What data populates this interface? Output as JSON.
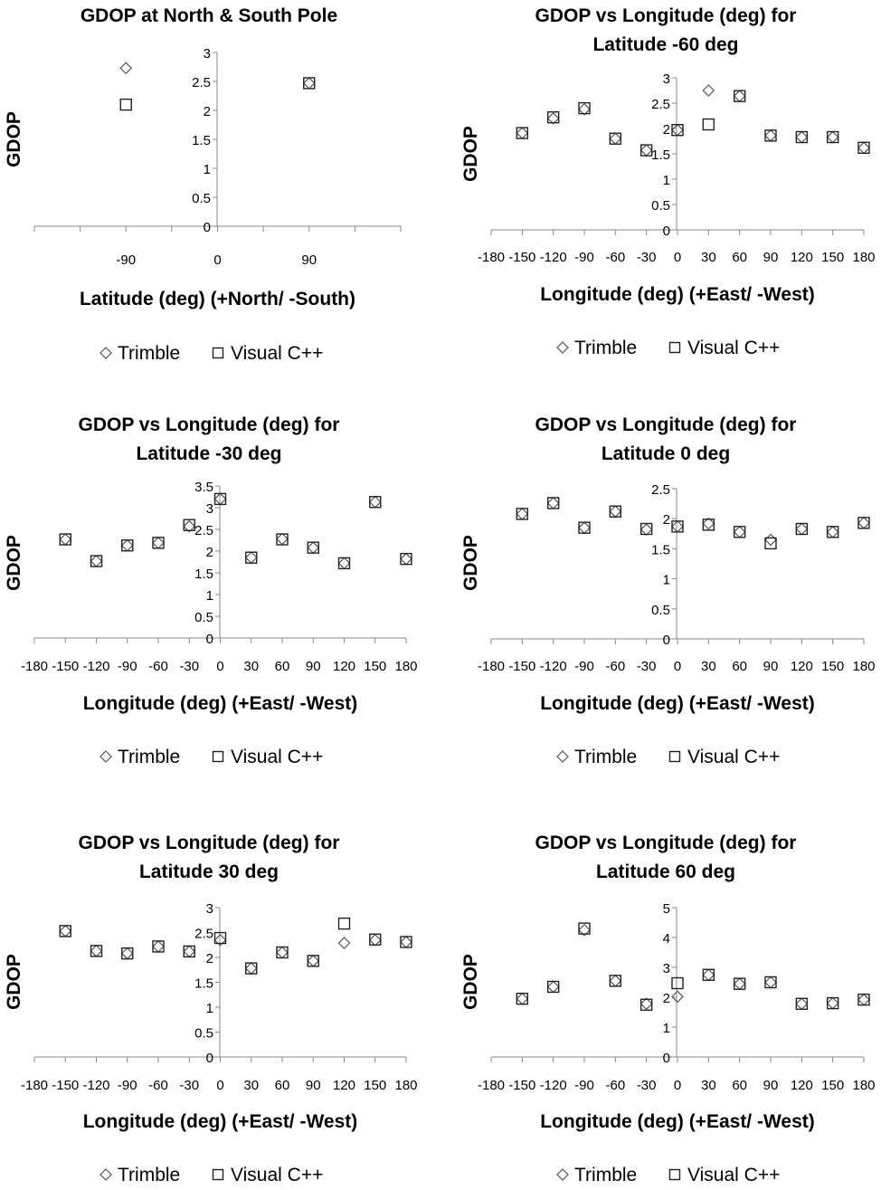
{
  "chart_data": [
    {
      "type": "scatter",
      "title_lines": [
        "GDOP at North & South Pole"
      ],
      "xlabel": "Latitude (deg) (+North/ -South)",
      "ylabel": "GDOP",
      "xlim": [
        -180,
        180
      ],
      "ylim": [
        0,
        3
      ],
      "xticks": [
        -90,
        0,
        90
      ],
      "yticks": [
        0,
        0.5,
        1,
        1.5,
        2,
        2.5,
        3
      ],
      "series": [
        {
          "name": "Trimble",
          "marker": "diamond",
          "x": [
            -90,
            90
          ],
          "y": [
            2.73,
            2.47
          ]
        },
        {
          "name": "Visual C++",
          "marker": "square",
          "x": [
            -90,
            90
          ],
          "y": [
            2.1,
            2.47
          ]
        }
      ]
    },
    {
      "type": "scatter",
      "title_lines": [
        "GDOP vs Longitude (deg) for",
        "Latitude -60 deg"
      ],
      "xlabel": "Longitude (deg) (+East/ -West)",
      "ylabel": "GDOP",
      "xlim": [
        -180,
        180
      ],
      "ylim": [
        0,
        3
      ],
      "xticks": [
        -180,
        -150,
        -120,
        -90,
        -60,
        -30,
        0,
        30,
        60,
        90,
        120,
        150,
        180
      ],
      "yticks": [
        0,
        0.5,
        1,
        1.5,
        2,
        2.5,
        3
      ],
      "series": [
        {
          "name": "Trimble",
          "marker": "diamond",
          "x": [
            -150,
            -120,
            -90,
            -60,
            -30,
            0,
            30,
            60,
            90,
            120,
            150,
            180
          ],
          "y": [
            1.91,
            2.2,
            2.38,
            1.8,
            1.57,
            1.97,
            2.75,
            2.64,
            1.86,
            1.83,
            1.83,
            1.62
          ]
        },
        {
          "name": "Visual C++",
          "marker": "square",
          "x": [
            -150,
            -120,
            -90,
            -60,
            -30,
            0,
            30,
            60,
            90,
            120,
            150,
            180
          ],
          "y": [
            1.91,
            2.22,
            2.4,
            1.8,
            1.57,
            1.97,
            2.08,
            2.64,
            1.86,
            1.83,
            1.83,
            1.62
          ]
        }
      ]
    },
    {
      "type": "scatter",
      "title_lines": [
        "GDOP vs Longitude (deg) for",
        "Latitude -30 deg"
      ],
      "xlabel": "Longitude (deg) (+East/ -West)",
      "ylabel": "GDOP",
      "xlim": [
        -180,
        180
      ],
      "ylim": [
        0,
        3.5
      ],
      "xticks": [
        -180,
        -150,
        -120,
        -90,
        -60,
        -30,
        0,
        30,
        60,
        90,
        120,
        150,
        180
      ],
      "yticks": [
        0,
        0.5,
        1,
        1.5,
        2,
        2.5,
        3,
        3.5
      ],
      "series": [
        {
          "name": "Trimble",
          "marker": "diamond",
          "x": [
            -150,
            -120,
            -90,
            -60,
            -30,
            0,
            30,
            60,
            90,
            120,
            150,
            180
          ],
          "y": [
            2.27,
            1.77,
            2.13,
            2.19,
            2.57,
            3.2,
            1.85,
            2.28,
            2.08,
            1.72,
            3.13,
            1.82
          ]
        },
        {
          "name": "Visual C++",
          "marker": "square",
          "x": [
            -150,
            -120,
            -90,
            -60,
            -30,
            0,
            30,
            60,
            90,
            120,
            150,
            180
          ],
          "y": [
            2.27,
            1.77,
            2.13,
            2.19,
            2.6,
            3.2,
            1.85,
            2.27,
            2.08,
            1.72,
            3.13,
            1.82
          ]
        }
      ]
    },
    {
      "type": "scatter",
      "title_lines": [
        "GDOP vs Longitude (deg) for",
        "Latitude 0 deg"
      ],
      "xlabel": "Longitude (deg) (+East/ -West)",
      "ylabel": "GDOP",
      "xlim": [
        -180,
        180
      ],
      "ylim": [
        0,
        2.5
      ],
      "xticks": [
        -180,
        -150,
        -120,
        -90,
        -60,
        -30,
        0,
        30,
        60,
        90,
        120,
        150,
        180
      ],
      "yticks": [
        0,
        0.5,
        1,
        1.5,
        2,
        2.5
      ],
      "series": [
        {
          "name": "Trimble",
          "marker": "diamond",
          "x": [
            -150,
            -120,
            -90,
            -60,
            -30,
            0,
            30,
            60,
            90,
            120,
            150,
            180
          ],
          "y": [
            2.08,
            2.26,
            1.85,
            2.12,
            1.82,
            1.87,
            1.92,
            1.78,
            1.65,
            1.83,
            1.78,
            1.93
          ]
        },
        {
          "name": "Visual C++",
          "marker": "square",
          "x": [
            -150,
            -120,
            -90,
            -60,
            -30,
            0,
            30,
            60,
            90,
            120,
            150,
            180
          ],
          "y": [
            2.08,
            2.26,
            1.85,
            2.12,
            1.83,
            1.87,
            1.9,
            1.78,
            1.59,
            1.83,
            1.78,
            1.93
          ]
        }
      ]
    },
    {
      "type": "scatter",
      "title_lines": [
        "GDOP vs Longitude (deg) for",
        "Latitude 30 deg"
      ],
      "xlabel": "Longitude (deg) (+East/ -West)",
      "ylabel": "GDOP",
      "xlim": [
        -180,
        180
      ],
      "ylim": [
        0,
        3
      ],
      "xticks": [
        -180,
        -150,
        -120,
        -90,
        -60,
        -30,
        0,
        30,
        60,
        90,
        120,
        150,
        180
      ],
      "yticks": [
        0,
        0.5,
        1,
        1.5,
        2,
        2.5,
        3
      ],
      "series": [
        {
          "name": "Trimble",
          "marker": "diamond",
          "x": [
            -150,
            -120,
            -90,
            -60,
            -30,
            0,
            30,
            60,
            90,
            120,
            150,
            180
          ],
          "y": [
            2.53,
            2.13,
            2.08,
            2.22,
            2.12,
            2.35,
            1.78,
            2.1,
            1.93,
            2.29,
            2.35,
            2.31
          ]
        },
        {
          "name": "Visual C++",
          "marker": "square",
          "x": [
            -150,
            -120,
            -90,
            -60,
            -30,
            0,
            30,
            60,
            90,
            120,
            150,
            180
          ],
          "y": [
            2.53,
            2.13,
            2.08,
            2.22,
            2.12,
            2.39,
            1.78,
            2.1,
            1.93,
            2.68,
            2.36,
            2.31
          ]
        }
      ]
    },
    {
      "type": "scatter",
      "title_lines": [
        "GDOP vs Longitude (deg) for",
        "Latitude 60 deg"
      ],
      "xlabel": "Longitude (deg) (+East/ -West)",
      "ylabel": "GDOP",
      "xlim": [
        -180,
        180
      ],
      "ylim": [
        0,
        5
      ],
      "xticks": [
        -180,
        -150,
        -120,
        -90,
        -60,
        -30,
        0,
        30,
        60,
        90,
        120,
        150,
        180
      ],
      "yticks": [
        0,
        1,
        2,
        3,
        4,
        5
      ],
      "series": [
        {
          "name": "Trimble",
          "marker": "diamond",
          "x": [
            -150,
            -120,
            -90,
            -60,
            -30,
            0,
            30,
            60,
            90,
            120,
            150,
            180
          ],
          "y": [
            1.95,
            2.35,
            4.25,
            2.55,
            1.78,
            2.02,
            2.75,
            2.45,
            2.5,
            1.78,
            1.8,
            1.92
          ]
        },
        {
          "name": "Visual C++",
          "marker": "square",
          "x": [
            -150,
            -120,
            -90,
            -60,
            -30,
            0,
            30,
            60,
            90,
            120,
            150,
            180
          ],
          "y": [
            1.95,
            2.35,
            4.3,
            2.55,
            1.75,
            2.47,
            2.75,
            2.45,
            2.5,
            1.78,
            1.8,
            1.92
          ]
        }
      ]
    }
  ]
}
